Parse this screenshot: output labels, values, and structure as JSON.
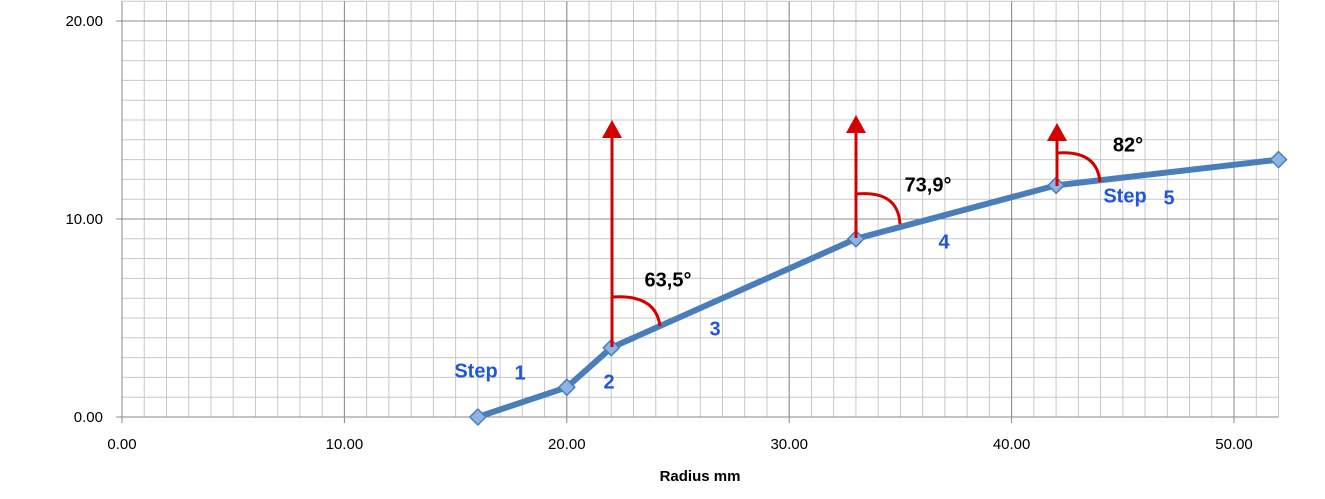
{
  "chart_data": {
    "type": "line",
    "x_label": "Radius mm",
    "x": [
      16,
      20,
      22,
      33,
      42,
      52
    ],
    "series": [
      {
        "color": "#4a7ebb",
        "values": [
          0,
          1.5,
          3.5,
          9,
          11.7,
          13
        ]
      }
    ],
    "xlim": [
      0,
      52
    ],
    "ylim": [
      0,
      21
    ],
    "xticks": [
      {
        "value": 0,
        "label": "0.00"
      },
      {
        "value": 10,
        "label": "10.00"
      },
      {
        "value": 20,
        "label": "20.00"
      },
      {
        "value": 30,
        "label": "30.00"
      },
      {
        "value": 40,
        "label": "40.00"
      },
      {
        "value": 50,
        "label": "50.00"
      }
    ],
    "yticks": [
      {
        "value": 0,
        "label": "0.00"
      },
      {
        "value": 10,
        "label": "10.00"
      },
      {
        "value": 20,
        "label": "20.00"
      }
    ],
    "grid": true,
    "minor_grid": true,
    "annotations": [
      "63,5°",
      "73,9°",
      "82°",
      "Step",
      "1",
      "2",
      "3",
      "4",
      "Step",
      "5"
    ]
  }
}
